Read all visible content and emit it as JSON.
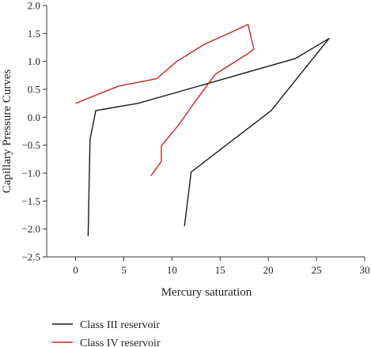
{
  "chart_data": {
    "type": "line",
    "title": "",
    "xlabel": "Mercury saturation",
    "ylabel": "Capillary Pressure Curves",
    "xlim": [
      -3,
      30
    ],
    "ylim": [
      -2.5,
      2.0
    ],
    "xticks": [
      0,
      5,
      10,
      15,
      20,
      25,
      30
    ],
    "yticks": [
      -2.5,
      -2.0,
      -1.5,
      -1.0,
      -0.5,
      0.0,
      0.5,
      1.0,
      1.5,
      2.0
    ],
    "xtick_labels": [
      "0",
      "5",
      "10",
      "15",
      "20",
      "25",
      "30"
    ],
    "ytick_labels": [
      "−2.5",
      "−2.0",
      "−1.5",
      "−1.0",
      "−0.5",
      "0.0",
      "0.5",
      "1.0",
      "1.5",
      "2.0"
    ],
    "grid": false,
    "legend_position": "bottom-left",
    "series": [
      {
        "name": "Class III reservoir",
        "color": "#1a1a1a",
        "points": [
          [
            1.3,
            -2.13
          ],
          [
            1.5,
            -0.4
          ],
          [
            2.1,
            0.12
          ],
          [
            6.5,
            0.25
          ],
          [
            22.8,
            1.05
          ],
          [
            26.3,
            1.41
          ],
          [
            20.3,
            0.12
          ],
          [
            12.0,
            -0.98
          ],
          [
            11.3,
            -1.95
          ]
        ]
      },
      {
        "name": "Class IV reservoir",
        "color": "#cc2222",
        "points": [
          [
            0.0,
            0.25
          ],
          [
            4.5,
            0.56
          ],
          [
            8.4,
            0.69
          ],
          [
            10.5,
            1.0
          ],
          [
            13.3,
            1.3
          ],
          [
            17.9,
            1.66
          ],
          [
            18.5,
            1.22
          ],
          [
            17.8,
            1.13
          ],
          [
            14.5,
            0.77
          ],
          [
            12.5,
            0.3
          ],
          [
            10.6,
            -0.16
          ],
          [
            8.9,
            -0.51
          ],
          [
            8.9,
            -0.79
          ],
          [
            7.8,
            -1.05
          ]
        ]
      }
    ]
  }
}
